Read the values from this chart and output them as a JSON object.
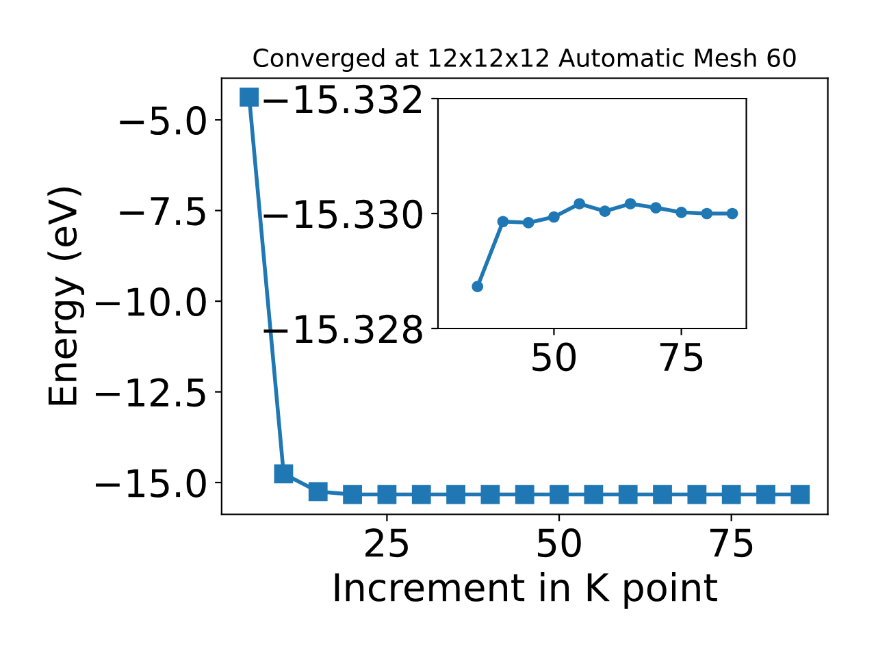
{
  "chart_data": [
    {
      "type": "line",
      "title": "Converged at 12x12x12 Automatic Mesh 60",
      "xlabel": "Increment in K point",
      "ylabel": "Energy (eV)",
      "x": [
        5,
        10,
        15,
        20,
        25,
        30,
        35,
        40,
        45,
        50,
        55,
        60,
        65,
        70,
        75,
        80,
        85
      ],
      "values": [
        -4.37,
        -14.76,
        -15.25,
        -15.33,
        -15.33,
        -15.33,
        -15.33,
        -15.33,
        -15.33,
        -15.33,
        -15.33,
        -15.33,
        -15.33,
        -15.33,
        -15.33,
        -15.33,
        -15.33
      ],
      "color": "#1f77b4",
      "marker": "square",
      "xlim": [
        1,
        89
      ],
      "ylim": [
        -15.88,
        -3.85
      ],
      "xticks": [
        25,
        50,
        75
      ],
      "yticks": [
        {
          "value": -15,
          "label": "−15.0"
        },
        {
          "value": -12.5,
          "label": "−12.5"
        },
        {
          "value": -10,
          "label": "−10.0"
        },
        {
          "value": -7.5,
          "label": "−7.5"
        },
        {
          "value": -5,
          "label": "−5.0"
        }
      ]
    },
    {
      "type": "line",
      "x": [
        35,
        40,
        45,
        50,
        55,
        60,
        65,
        70,
        75,
        80,
        85
      ],
      "values": [
        -15.32873,
        -15.32986,
        -15.32984,
        -15.32994,
        -15.33017,
        -15.33004,
        -15.33017,
        -15.3301,
        -15.33002,
        -15.33,
        -15.33
      ],
      "color": "#1f77b4",
      "marker": "circle",
      "xlim": [
        27.25,
        87.75
      ],
      "ylim": [
        -15.328,
        -15.332
      ],
      "xticks": [
        50,
        75
      ],
      "yticks": [
        {
          "value": -15.332,
          "label": "−15.332"
        },
        {
          "value": -15.33,
          "label": "−15.330"
        },
        {
          "value": -15.328,
          "label": "−15.328"
        }
      ]
    }
  ]
}
